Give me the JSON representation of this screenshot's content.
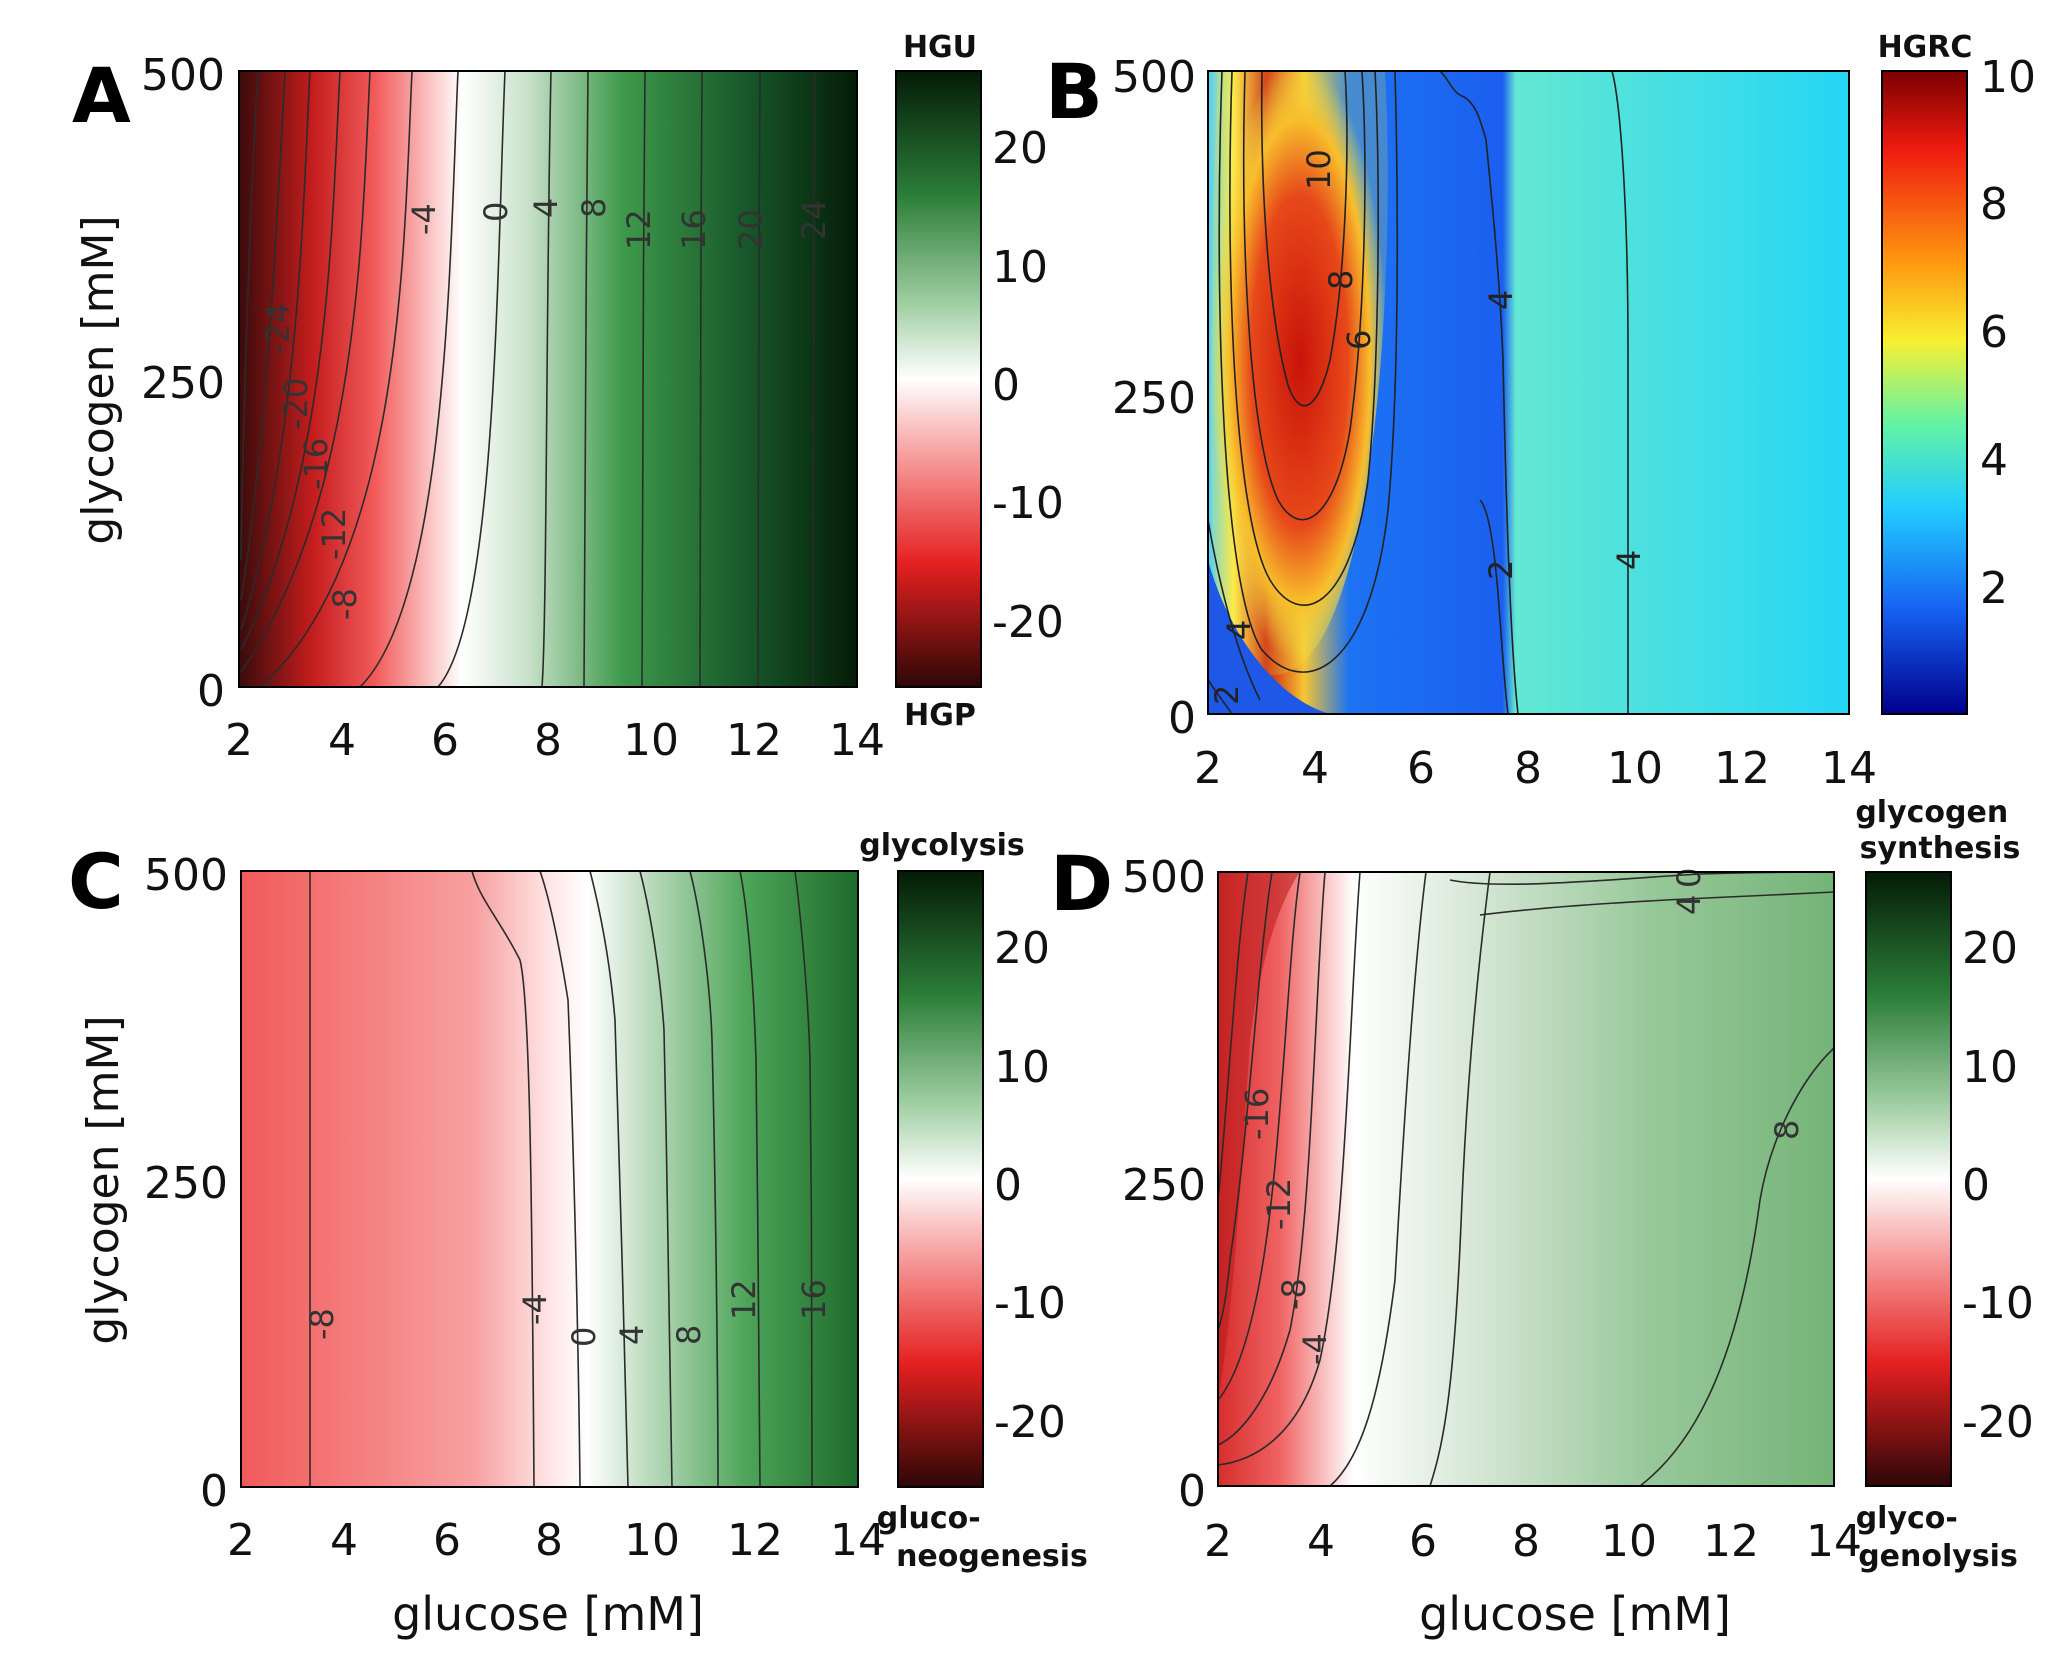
{
  "chart_data": [
    {
      "panel": "A",
      "type": "contour",
      "xlabel": "",
      "ylabel": "glycogen [mM]",
      "xlim": [
        2,
        14
      ],
      "ylim": [
        0,
        500
      ],
      "xticks": [
        "2",
        "4",
        "6",
        "8",
        "10",
        "12",
        "14"
      ],
      "yticks": [
        "0",
        "250",
        "500"
      ],
      "colorbar": {
        "top_label": "HGU",
        "bottom_label": "HGP",
        "range": [
          -26,
          26
        ],
        "ticks": [
          "20",
          "10",
          "0",
          "-10",
          "-20"
        ],
        "colormap": "red-white-green"
      },
      "contour_labels": [
        "-24",
        "-20",
        "-16",
        "-12",
        "-8",
        "-4",
        "0",
        "4",
        "8",
        "12",
        "16",
        "20",
        "24"
      ],
      "colors": {
        "negative": "#e62a2a",
        "zero": "#ffffff",
        "positive": "#1f8a2e"
      }
    },
    {
      "panel": "B",
      "type": "contour",
      "xlabel": "",
      "ylabel": "",
      "xlim": [
        2,
        14
      ],
      "ylim": [
        0,
        500
      ],
      "xticks": [
        "2",
        "4",
        "6",
        "8",
        "10",
        "12",
        "14"
      ],
      "yticks": [
        "0",
        "250",
        "500"
      ],
      "colorbar": {
        "top_label": "HGRC",
        "bottom_label": "",
        "range": [
          0,
          10
        ],
        "ticks": [
          "10",
          "8",
          "6",
          "4",
          "2"
        ],
        "colormap": "jet"
      },
      "contour_labels": [
        "10",
        "8",
        "6",
        "4",
        "4",
        "4",
        "2",
        "2",
        "4"
      ]
    },
    {
      "panel": "C",
      "type": "contour",
      "xlabel": "glucose [mM]",
      "ylabel": "glycogen [mM]",
      "xlim": [
        2,
        14
      ],
      "ylim": [
        0,
        500
      ],
      "xticks": [
        "2",
        "4",
        "6",
        "8",
        "10",
        "12",
        "14"
      ],
      "yticks": [
        "0",
        "250",
        "500"
      ],
      "colorbar": {
        "top_label": "glycolysis",
        "bottom_label": "gluco-\nneogenesis",
        "range": [
          -26,
          26
        ],
        "ticks": [
          "20",
          "10",
          "0",
          "-10",
          "-20"
        ],
        "colormap": "red-white-green"
      },
      "contour_labels": [
        "-8",
        "-4",
        "0",
        "4",
        "8",
        "12",
        "16"
      ]
    },
    {
      "panel": "D",
      "type": "contour",
      "xlabel": "glucose [mM]",
      "ylabel": "",
      "xlim": [
        2,
        14
      ],
      "ylim": [
        0,
        500
      ],
      "xticks": [
        "2",
        "4",
        "6",
        "8",
        "10",
        "12",
        "14"
      ],
      "yticks": [
        "0",
        "250",
        "500"
      ],
      "colorbar": {
        "top_label": "glycogen\nsynthesis",
        "bottom_label": "glyco-\ngenolysis",
        "range": [
          -26,
          26
        ],
        "ticks": [
          "20",
          "10",
          "0",
          "-10",
          "-20"
        ],
        "colormap": "red-white-green"
      },
      "contour_labels": [
        "-16",
        "-12",
        "-8",
        "-4",
        "0",
        "4",
        "8"
      ]
    }
  ],
  "panel_letters": [
    "A",
    "B",
    "C",
    "D"
  ]
}
